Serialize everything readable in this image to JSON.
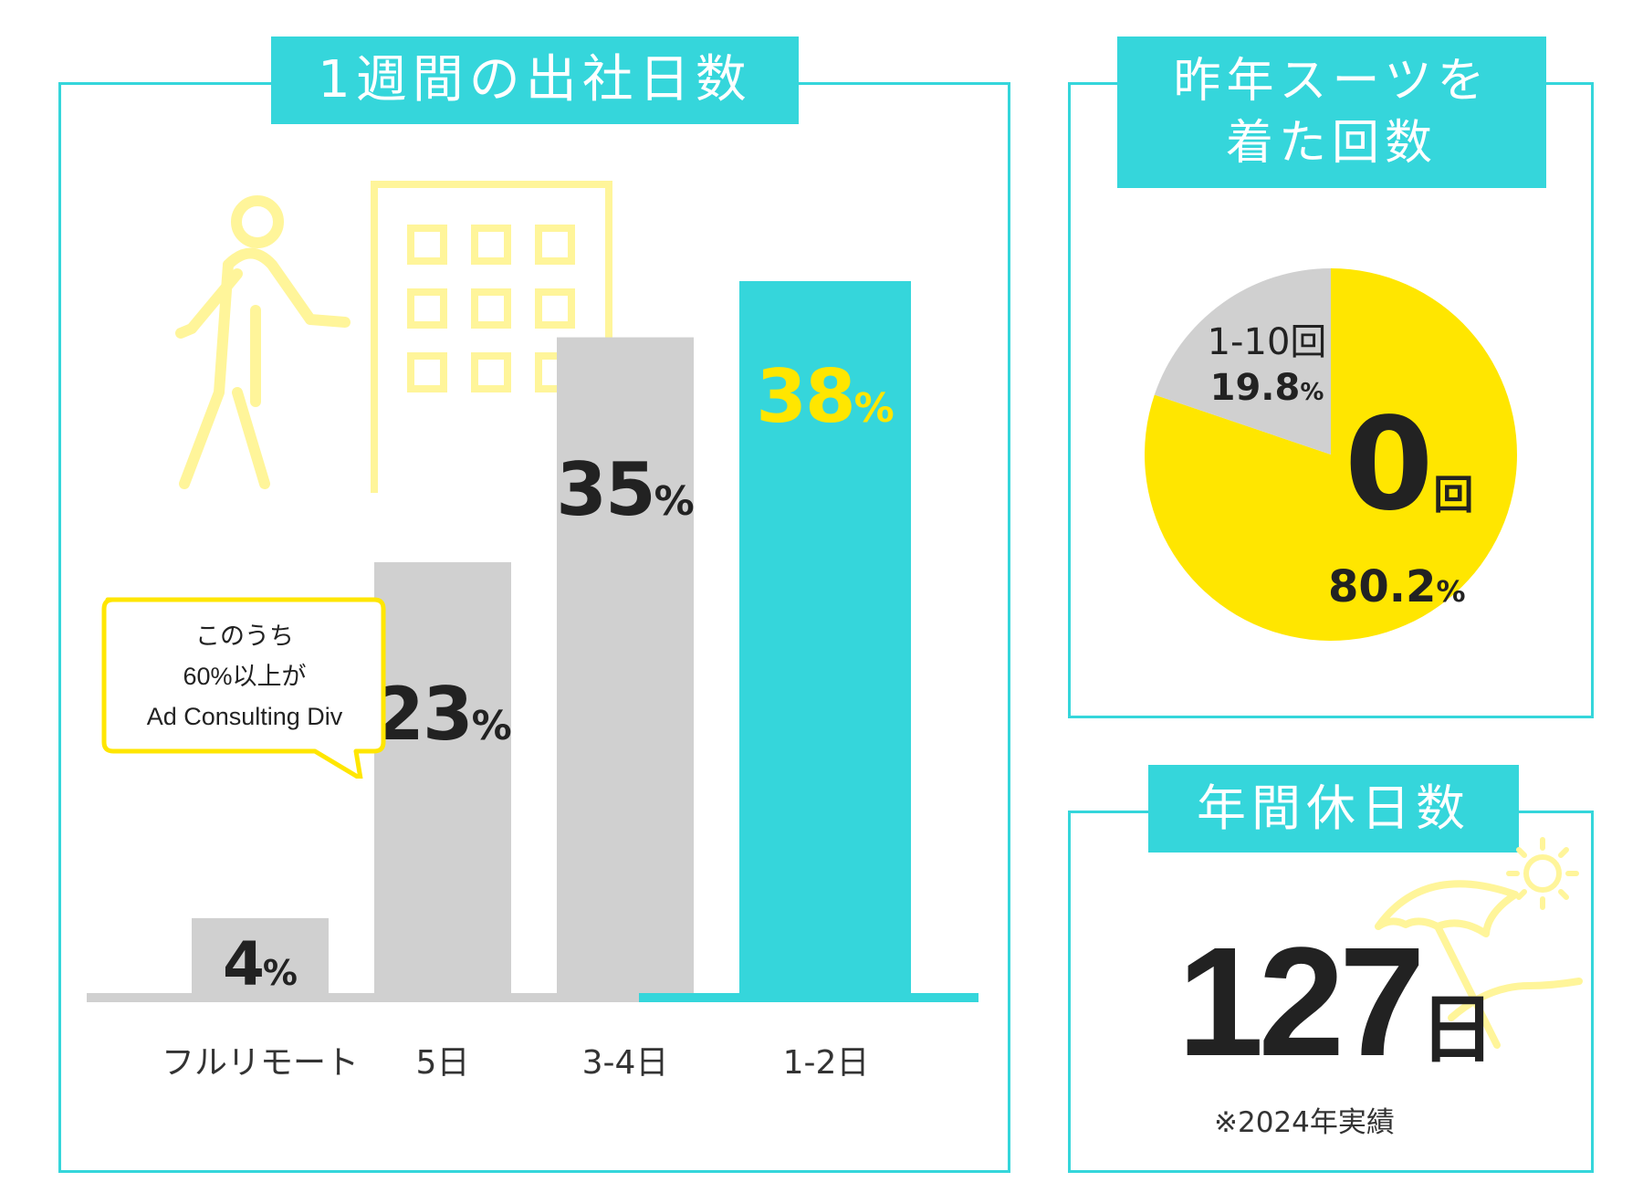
{
  "panels": {
    "commute": {
      "title": "1週間の出社日数"
    },
    "suit": {
      "title_line1": "昨年スーツを",
      "title_line2": "着た回数"
    },
    "holidays": {
      "title": "年間休日数"
    }
  },
  "bubble": {
    "line1": "このうち",
    "line2": "60%以上が",
    "line3": "Ad Consulting Div"
  },
  "holidays": {
    "value": "127",
    "unit": "日",
    "note": "※2024年実績"
  },
  "colors": {
    "accent": "#35d6db",
    "highlight": "#ffe600",
    "gray_bar": "#d0d0d0",
    "illustration": "#fff59a"
  },
  "icons": [
    "walking-person-icon",
    "office-building-icon",
    "beach-umbrella-icon",
    "sun-icon"
  ],
  "chart_data": [
    {
      "type": "bar",
      "categories": [
        "フルリモート",
        "5日",
        "3-4日",
        "1-2日"
      ],
      "values": [
        4,
        23,
        35,
        38
      ],
      "value_labels": [
        {
          "num": "4",
          "unit": "%"
        },
        {
          "num": "23",
          "unit": "%"
        },
        {
          "num": "35",
          "unit": "%"
        },
        {
          "num": "38",
          "unit": "%"
        }
      ],
      "bar_colors": [
        "#d0d0d0",
        "#d0d0d0",
        "#d0d0d0",
        "#35d6db"
      ],
      "label_colors": [
        "#222222",
        "#222222",
        "#222222",
        "#ffe600"
      ],
      "title": "1週間の出社日数",
      "ylim": [
        0,
        40
      ]
    },
    {
      "type": "pie",
      "slices": [
        {
          "name": "0回",
          "label_num": "0",
          "label_unit": "回",
          "percent": "80.2",
          "value": 80.2,
          "color": "#ffe600"
        },
        {
          "name": "1-10回",
          "percent": "19.8",
          "value": 19.8,
          "color": "#d0d0d0"
        }
      ],
      "percent_unit": "%",
      "title": "昨年スーツを着た回数"
    }
  ]
}
